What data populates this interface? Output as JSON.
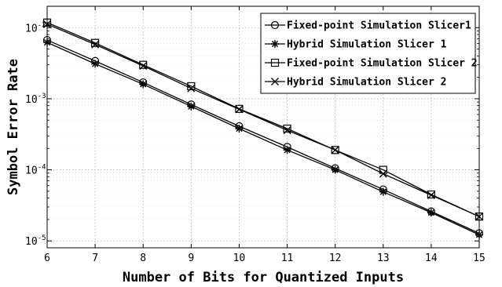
{
  "chart_data": {
    "type": "line",
    "title": "",
    "xlabel": "Number of Bits for Quantized Inputs",
    "ylabel": "Symbol Error Rate",
    "x": [
      6,
      7,
      8,
      9,
      10,
      11,
      12,
      13,
      14,
      15
    ],
    "xlim": [
      6,
      15
    ],
    "ylim": [
      8e-06,
      0.02
    ],
    "yscale": "log",
    "grid": "dotted",
    "legend_position": "top-right",
    "x_ticks": [
      "6",
      "7",
      "8",
      "9",
      "10",
      "11",
      "12",
      "13",
      "14",
      "15"
    ],
    "y_ticks": [
      {
        "value": 0.01,
        "base": "10",
        "exp": "-2"
      },
      {
        "value": 0.001,
        "base": "10",
        "exp": "-3"
      },
      {
        "value": 0.0001,
        "base": "10",
        "exp": "-4"
      },
      {
        "value": 1e-05,
        "base": "10",
        "exp": "-5"
      }
    ],
    "series": [
      {
        "name": "Fixed-point Simulation Slicer1",
        "marker": "circle",
        "values": [
          0.0067,
          0.0034,
          0.0017,
          0.00083,
          0.00041,
          0.00021,
          0.000105,
          5.3e-05,
          2.6e-05,
          1.28e-05
        ]
      },
      {
        "name": "Hybrid Simulation Slicer 1",
        "marker": "asterisk",
        "values": [
          0.0062,
          0.0031,
          0.0016,
          0.00078,
          0.00038,
          0.00019,
          0.0001,
          4.9e-05,
          2.5e-05,
          1.22e-05
        ]
      },
      {
        "name": "Fixed-point Simulation Slicer 2",
        "marker": "square",
        "values": [
          0.0118,
          0.0061,
          0.003,
          0.0015,
          0.00072,
          0.00038,
          0.00019,
          0.0001,
          4.5e-05,
          2.2e-05
        ]
      },
      {
        "name": "Hybrid Simulation Slicer 2",
        "marker": "x",
        "values": [
          0.0112,
          0.0058,
          0.0029,
          0.0014,
          0.00071,
          0.00036,
          0.00019,
          8.8e-05,
          4.4e-05,
          2.2e-05
        ]
      }
    ]
  }
}
